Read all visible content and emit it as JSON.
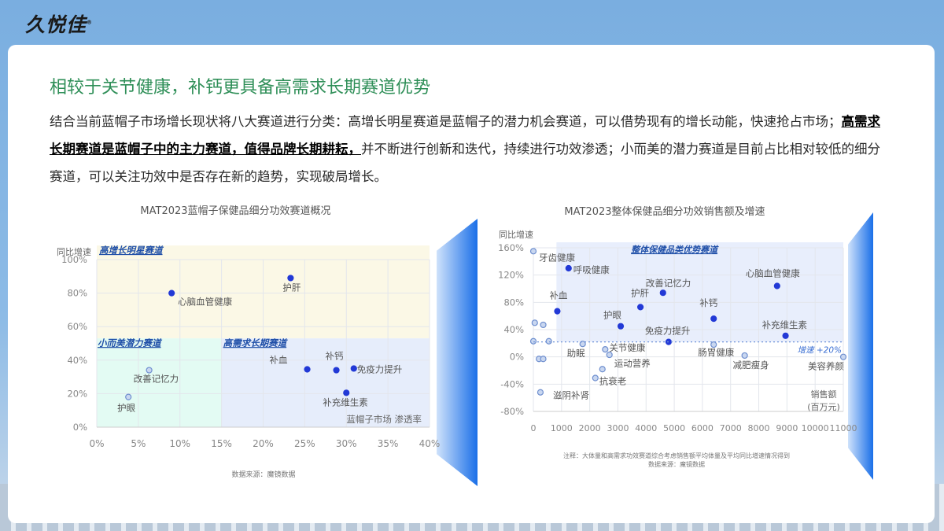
{
  "logo": "久悦佳",
  "title": "相较于关节健康，补钙更具备高需求长期赛道优势",
  "paragraph": {
    "p1": "结合当前蓝帽子市场增长现状将八大赛道进行分类：高增长明星赛道是蓝帽子的潜力机会赛道，可以借势现有的增长动能，快速抢占市场；",
    "bold": "高需求长期赛道是蓝帽子中的主力赛道，值得品牌长期耕耘，",
    "p2": "并不断进行创新和迭代，持续进行功效渗透；小而美的潜力赛道是目前占比相对较低的细分赛道，可以关注功效中是否存在新的趋势，实现破局增长。"
  },
  "colors": {
    "dark_point": "#2239d6",
    "light_point": "#9db8e6",
    "title_green": "#2f8f58"
  },
  "chart_data": [
    {
      "type": "scatter",
      "title": "MAT2023蓝帽子保健品细分功效赛道概况",
      "xlabel": "蓝帽子市场 渗透率",
      "ylabel": "同比增速",
      "source": "数据来源：魔镜数据",
      "xlim": [
        0,
        40
      ],
      "ylim": [
        0,
        100
      ],
      "xticks": [
        "0%",
        "5%",
        "10%",
        "15%",
        "20%",
        "25%",
        "30%",
        "35%",
        "40%"
      ],
      "yticks": [
        "0%",
        "20%",
        "40%",
        "60%",
        "80%",
        "100%"
      ],
      "grid": true,
      "regions": [
        {
          "label": "高增长明星赛道",
          "color": "#fbf8e6"
        },
        {
          "label": "小而美潜力赛道",
          "color": "#e3fbf3"
        },
        {
          "label": "高需求长期赛道",
          "color": "#e6edfb"
        }
      ],
      "points": [
        {
          "name": "心脑血管健康",
          "x": 9,
          "y": 80,
          "tone": "dark"
        },
        {
          "name": "护肝",
          "x": 23.3,
          "y": 89,
          "tone": "dark"
        },
        {
          "name": "改善记忆力",
          "x": 6.3,
          "y": 34,
          "tone": "light"
        },
        {
          "name": "护眼",
          "x": 3.8,
          "y": 18,
          "tone": "light"
        },
        {
          "name": "补血",
          "x": 25.3,
          "y": 34.5,
          "tone": "dark"
        },
        {
          "name": "补钙",
          "x": 28.8,
          "y": 34,
          "tone": "dark"
        },
        {
          "name": "免疫力提升",
          "x": 30.9,
          "y": 35,
          "tone": "dark"
        },
        {
          "name": "补充维生素",
          "x": 30,
          "y": 20.5,
          "tone": "dark"
        }
      ]
    },
    {
      "type": "scatter",
      "title": "MAT2023整体保健品细分功效销售额及增速",
      "xlabel": "销售额\n(百万元)",
      "ylabel": "同比增速",
      "note": "注释：大体量和高需求功效赛道综合考虑销售额平均体量及平均同比增速情况得到",
      "source": "数据来源：魔镜数据",
      "xlim": [
        0,
        11000
      ],
      "ylim": [
        -80,
        160
      ],
      "xticks": [
        "0",
        "1000",
        "2000",
        "3000",
        "4000",
        "5000",
        "6000",
        "7000",
        "8000",
        "9000",
        "10000",
        "11000"
      ],
      "yticks": [
        "-80%",
        "-40%",
        "0%",
        "40%",
        "80%",
        "120%",
        "160%"
      ],
      "grid": true,
      "region_label": "整体保健品类优势赛道",
      "threshold_label": "增速 +20%",
      "points": [
        {
          "name": "牙齿健康",
          "x": 0,
          "y": 155,
          "tone": "light"
        },
        {
          "name": "呼吸健康",
          "x": 1250,
          "y": 130,
          "tone": "dark"
        },
        {
          "name": "补血",
          "x": 850,
          "y": 67,
          "tone": "dark"
        },
        {
          "name": "护肝",
          "x": 3800,
          "y": 73,
          "tone": "dark"
        },
        {
          "name": "改善记忆力",
          "x": 4600,
          "y": 94,
          "tone": "dark"
        },
        {
          "name": "心脑血管健康",
          "x": 8650,
          "y": 104,
          "tone": "dark"
        },
        {
          "name": "护眼",
          "x": 3100,
          "y": 45,
          "tone": "dark"
        },
        {
          "name": "补钙",
          "x": 6400,
          "y": 56,
          "tone": "dark"
        },
        {
          "name": "免疫力提升",
          "x": 4800,
          "y": 22,
          "tone": "dark"
        },
        {
          "name": "补充维生素",
          "x": 8950,
          "y": 31,
          "tone": "dark"
        },
        {
          "name": "肠胃健康",
          "x": 6400,
          "y": 18,
          "tone": "light"
        },
        {
          "name": "助眠",
          "x": 1750,
          "y": 19,
          "tone": "light"
        },
        {
          "name": "关节健康",
          "x": 2550,
          "y": 11,
          "tone": "light"
        },
        {
          "name": "运动营养",
          "x": 2700,
          "y": 3,
          "tone": "light"
        },
        {
          "name": "抗衰老",
          "x": 2200,
          "y": -31,
          "tone": "light"
        },
        {
          "name": "",
          "x": 2450,
          "y": -18,
          "tone": "light"
        },
        {
          "name": "滋阴补肾",
          "x": 250,
          "y": -52,
          "tone": "light"
        },
        {
          "name": "减肥瘦身",
          "x": 7500,
          "y": 2,
          "tone": "light"
        },
        {
          "name": "美容养颜",
          "x": 11000,
          "y": 0,
          "tone": "light"
        },
        {
          "name": "",
          "x": 50,
          "y": 50,
          "tone": "light"
        },
        {
          "name": "",
          "x": 350,
          "y": 47,
          "tone": "light"
        },
        {
          "name": "",
          "x": 0,
          "y": 23,
          "tone": "light"
        },
        {
          "name": "",
          "x": 550,
          "y": 23,
          "tone": "light"
        },
        {
          "name": "",
          "x": 200,
          "y": -3,
          "tone": "light"
        },
        {
          "name": "",
          "x": 350,
          "y": -3,
          "tone": "light"
        }
      ]
    }
  ]
}
